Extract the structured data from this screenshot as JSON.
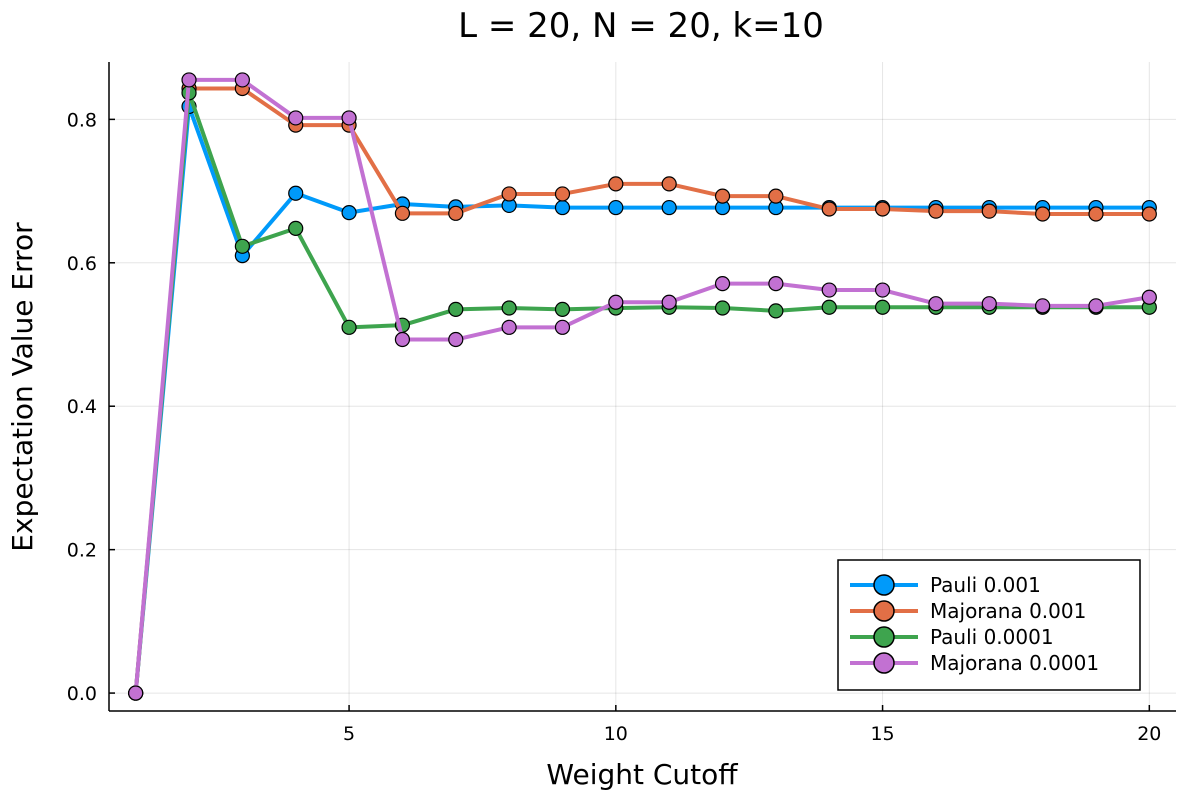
{
  "chart_data": {
    "type": "line",
    "title": "L = 20, N = 20, k=10",
    "xlabel": "Weight Cutoff",
    "ylabel": "Expectation Value Error",
    "xlim": [
      0.5,
      20.5
    ],
    "ylim": [
      -0.025,
      0.88
    ],
    "xticks": [
      5,
      10,
      15,
      20
    ],
    "yticks": [
      0.0,
      0.2,
      0.4,
      0.6,
      0.8
    ],
    "ytick_labels": [
      "0.0",
      "0.2",
      "0.4",
      "0.6",
      "0.8"
    ],
    "grid": true,
    "legend_position": "bottom-right",
    "x": [
      1,
      2,
      3,
      4,
      5,
      6,
      7,
      8,
      9,
      10,
      11,
      12,
      13,
      14,
      15,
      16,
      17,
      18,
      19,
      20
    ],
    "series": [
      {
        "name": "Pauli 0.001",
        "color": "#009AFA",
        "values": [
          0.0,
          0.818,
          0.61,
          0.697,
          0.67,
          0.682,
          0.678,
          0.68,
          0.677,
          0.677,
          0.677,
          0.677,
          0.677,
          0.677,
          0.677,
          0.677,
          0.677,
          0.677,
          0.677,
          0.677
        ]
      },
      {
        "name": "Majorana 0.001",
        "color": "#E26F46",
        "values": [
          0.0,
          0.843,
          0.843,
          0.792,
          0.792,
          0.669,
          0.669,
          0.696,
          0.696,
          0.71,
          0.71,
          0.693,
          0.693,
          0.675,
          0.675,
          0.672,
          0.672,
          0.668,
          0.668,
          0.668
        ]
      },
      {
        "name": "Pauli 0.0001",
        "color": "#3EA44E",
        "values": [
          0.0,
          0.837,
          0.623,
          0.648,
          0.51,
          0.513,
          0.535,
          0.537,
          0.535,
          0.537,
          0.538,
          0.537,
          0.533,
          0.538,
          0.538,
          0.538,
          0.538,
          0.538,
          0.538,
          0.538
        ]
      },
      {
        "name": "Majorana 0.0001",
        "color": "#C271D2",
        "values": [
          0.0,
          0.855,
          0.855,
          0.802,
          0.802,
          0.493,
          0.493,
          0.51,
          0.51,
          0.545,
          0.545,
          0.571,
          0.571,
          0.562,
          0.562,
          0.543,
          0.543,
          0.54,
          0.54,
          0.552
        ]
      }
    ]
  }
}
